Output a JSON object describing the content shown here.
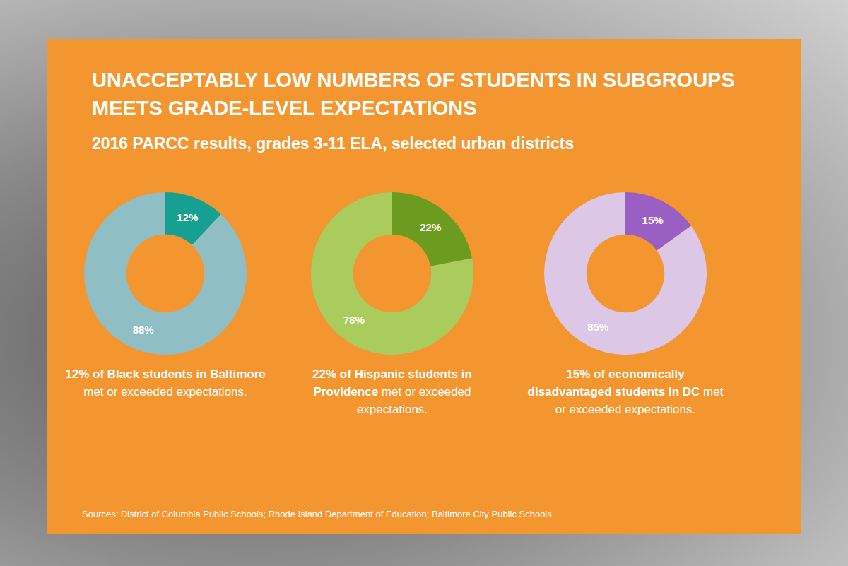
{
  "header": {
    "title": "UNACCEPTABLY LOW NUMBERS OF STUDENTS IN SUBGROUPS MEETS GRADE-LEVEL EXPECTATIONS",
    "subtitle": "2016 PARCC results, grades 3-11 ELA, selected urban districts",
    "source": "Sources: District of Columbia Public Schools; Rhode Island Department of Education; Baltimore City Public Schools"
  },
  "chart_data": [
    {
      "type": "pie",
      "values": [
        12,
        88
      ],
      "value_labels": [
        "12%",
        "88%"
      ],
      "colors": [
        "#16a091",
        "#8fbfc5"
      ],
      "data_labels": true,
      "caption": [
        "12% of Black students in Baltimore",
        "met or exceeded expectations."
      ]
    },
    {
      "type": "pie",
      "values": [
        22,
        78
      ],
      "value_labels": [
        "22%",
        "78%"
      ],
      "colors": [
        "#6c9c1f",
        "#a9cc5c"
      ],
      "data_labels": true,
      "caption": [
        "22% of Hispanic students in Providence",
        "met or exceeded expectations."
      ]
    },
    {
      "type": "pie",
      "values": [
        15,
        85
      ],
      "value_labels": [
        "15%",
        "85%"
      ],
      "colors": [
        "#9a5fc2",
        "#dcc7e7"
      ],
      "data_labels": true,
      "caption": [
        "15% of economically disadvantaged students in DC",
        "met or exceeded expectations."
      ]
    }
  ]
}
